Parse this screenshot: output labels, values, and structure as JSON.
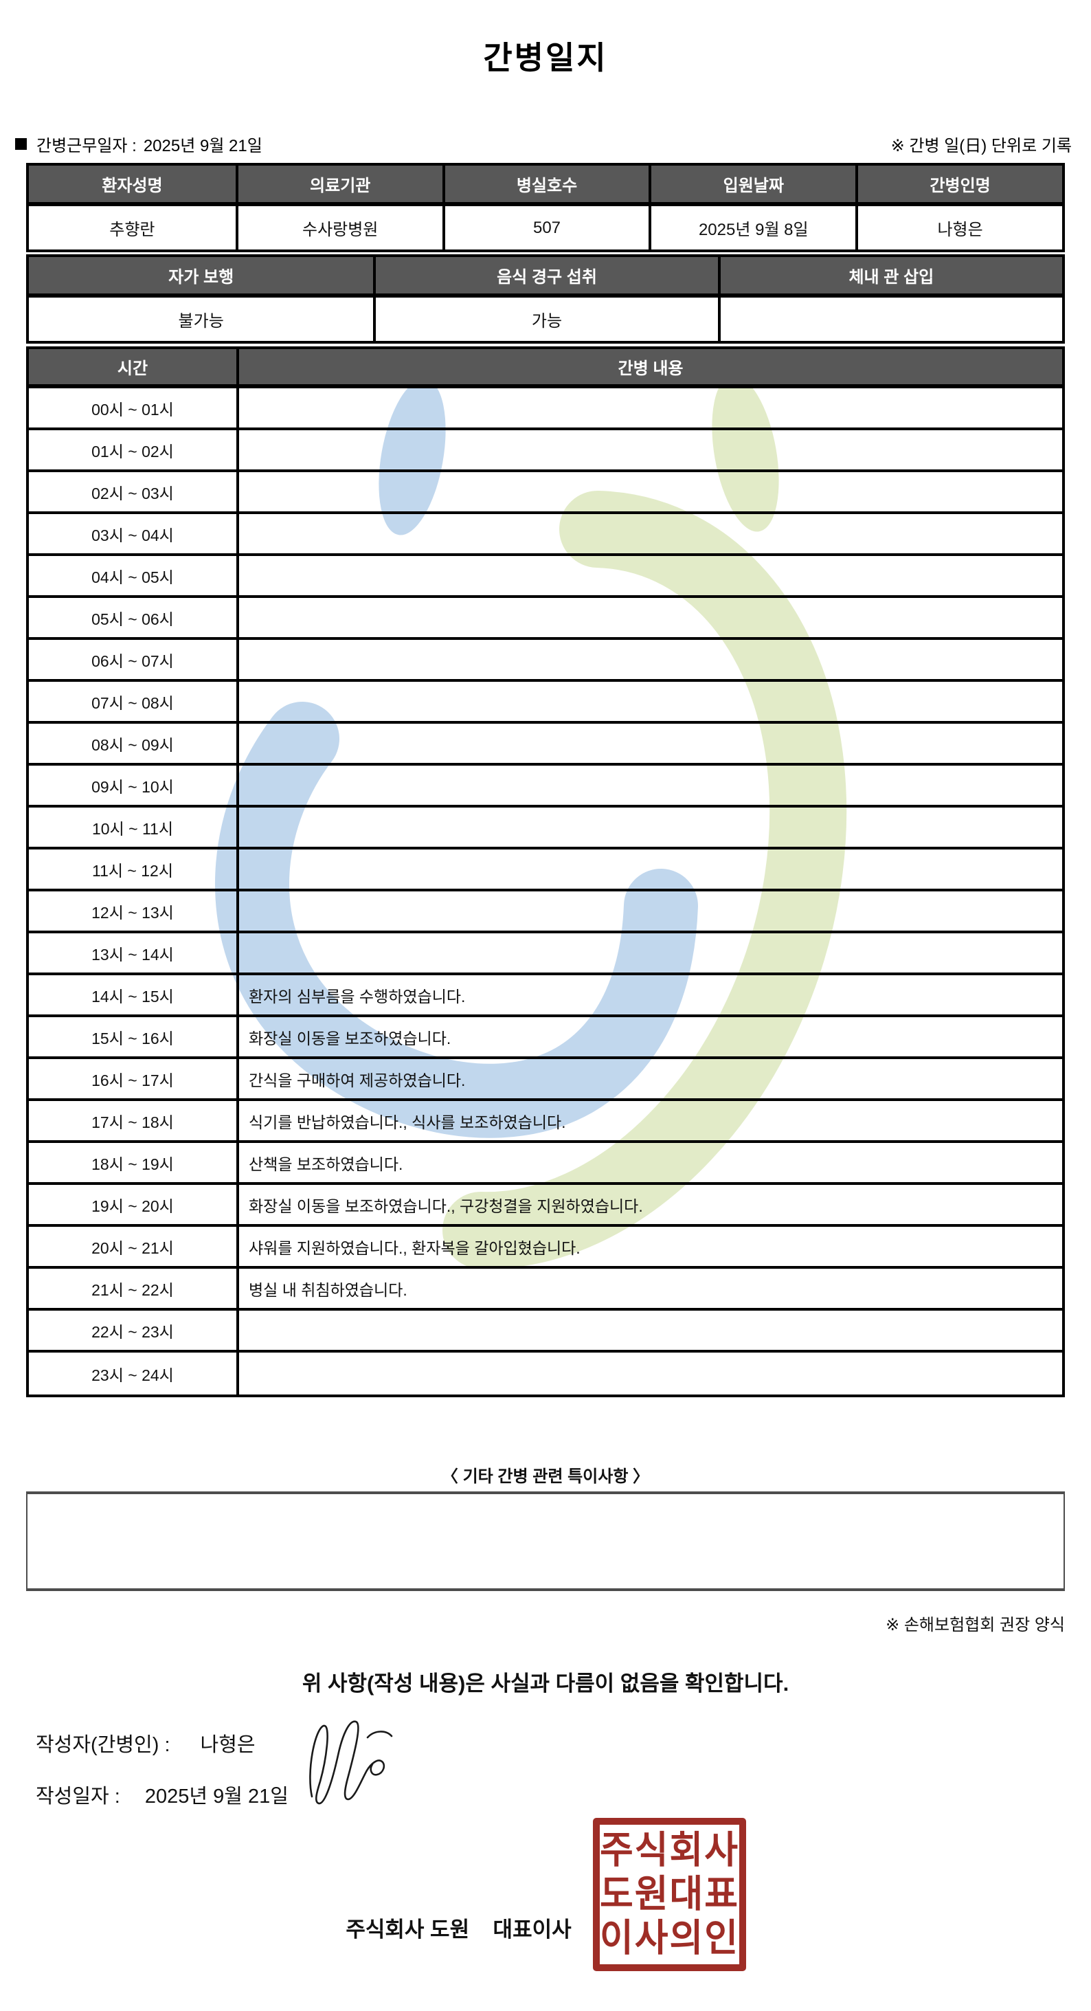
{
  "title": "간병일지",
  "meta": {
    "duty_date_label": "간병근무일자  :",
    "duty_date": "2025년 9월 21일",
    "unit_note": "※ 간병 일(日) 단위로 기록"
  },
  "patient_table": {
    "headers": [
      "환자성명",
      "의료기관",
      "병실호수",
      "입원날짜",
      "간병인명"
    ],
    "values": [
      "추향란",
      "수사랑병원",
      "507",
      "2025년 9월 8일",
      "나형은"
    ]
  },
  "status_table": {
    "headers": [
      "자가 보행",
      "음식 경구 섭취",
      "체내 관 삽입"
    ],
    "values": [
      "불가능",
      "가능",
      ""
    ]
  },
  "care_table": {
    "time_header": "시간",
    "content_header": "간병 내용",
    "rows": [
      {
        "time": "00시 ~ 01시",
        "content": ""
      },
      {
        "time": "01시 ~ 02시",
        "content": ""
      },
      {
        "time": "02시 ~ 03시",
        "content": ""
      },
      {
        "time": "03시 ~ 04시",
        "content": ""
      },
      {
        "time": "04시 ~ 05시",
        "content": ""
      },
      {
        "time": "05시 ~ 06시",
        "content": ""
      },
      {
        "time": "06시 ~ 07시",
        "content": ""
      },
      {
        "time": "07시 ~ 08시",
        "content": ""
      },
      {
        "time": "08시 ~ 09시",
        "content": ""
      },
      {
        "time": "09시 ~ 10시",
        "content": ""
      },
      {
        "time": "10시 ~ 11시",
        "content": ""
      },
      {
        "time": "11시 ~ 12시",
        "content": ""
      },
      {
        "time": "12시 ~ 13시",
        "content": ""
      },
      {
        "time": "13시 ~ 14시",
        "content": ""
      },
      {
        "time": "14시 ~ 15시",
        "content": "환자의 심부름을 수행하였습니다."
      },
      {
        "time": "15시 ~ 16시",
        "content": "화장실 이동을 보조하였습니다."
      },
      {
        "time": "16시 ~ 17시",
        "content": "간식을 구매하여 제공하였습니다."
      },
      {
        "time": "17시 ~ 18시",
        "content": "식기를 반납하였습니다., 식사를 보조하였습니다."
      },
      {
        "time": "18시 ~ 19시",
        "content": "산책을 보조하였습니다."
      },
      {
        "time": "19시 ~ 20시",
        "content": "화장실 이동을 보조하였습니다., 구강청결을 지원하였습니다."
      },
      {
        "time": "20시 ~ 21시",
        "content": "샤워를 지원하였습니다., 환자복을 갈아입혔습니다."
      },
      {
        "time": "21시 ~ 22시",
        "content": "병실 내 취침하였습니다."
      },
      {
        "time": "22시 ~ 23시",
        "content": ""
      },
      {
        "time": "23시 ~ 24시",
        "content": ""
      }
    ]
  },
  "extras": {
    "heading": "〈 기타 간병 관련 특이사항 〉",
    "content": "",
    "form_note": "※ 손해보험협회 권장 양식"
  },
  "confirmation": "위 사항(작성 내용)은 사실과 다름이 없음을 확인합니다.",
  "signer": {
    "writer_label": "작성자(간병인) :",
    "writer_name": "나형은",
    "date_label": "작성일자 :",
    "date_value": "2025년 9월 21일"
  },
  "company": {
    "name_line": "주식회사 도원    대표이사",
    "stamp_rows": [
      "주식회사",
      "도원대표",
      "이사의인"
    ]
  },
  "colors": {
    "table_header_bg": "#585858",
    "stamp_red": "#9e2d26",
    "watermark_blue": "#bcd4ec",
    "watermark_green": "#dfe9c3"
  }
}
